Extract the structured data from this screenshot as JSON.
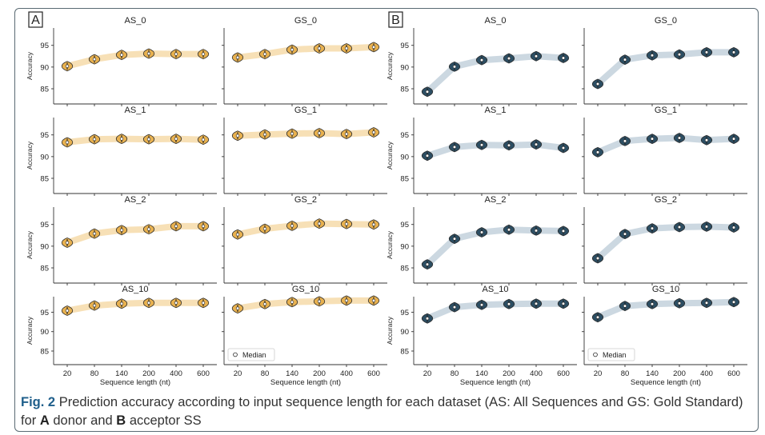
{
  "caption": {
    "label": "Fig. 2",
    "part1": "Prediction accuracy according to input sequence length for each dataset (AS: All Sequences and GS: Gold Standard) for",
    "a_letter": "A",
    "part2": "donor and",
    "b_letter": "B",
    "part3": "acceptor SS"
  },
  "panels": [
    {
      "letter": "A",
      "fill": "#e8b14f",
      "band": "#f7deb2"
    },
    {
      "letter": "B",
      "fill": "#2c4e63",
      "band": "#c9d6df"
    }
  ],
  "legend_label": "Median",
  "chart_data": {
    "type": "violin",
    "xlabel": "Sequence length (nt)",
    "ylabel": "Accuracy",
    "categories": [
      "20",
      "80",
      "140",
      "200",
      "400",
      "600"
    ],
    "ylim": [
      81.5,
      99
    ],
    "yticks": [
      85,
      90,
      95
    ],
    "grid": false,
    "legend": "Median, inside bottom-left of GS_10 subplots",
    "panels": [
      {
        "panel": "A",
        "subplots": [
          {
            "title": "AS_0",
            "medians": [
              90.2,
              91.8,
              92.8,
              93.1,
              93.0,
              93.0
            ]
          },
          {
            "title": "GS_0",
            "medians": [
              92.2,
              93.0,
              94.0,
              94.3,
              94.3,
              94.6
            ]
          },
          {
            "title": "AS_1",
            "medians": [
              93.3,
              94.0,
              94.1,
              94.0,
              94.1,
              93.9
            ]
          },
          {
            "title": "GS_1",
            "medians": [
              94.8,
              95.1,
              95.3,
              95.4,
              95.2,
              95.6
            ]
          },
          {
            "title": "AS_2",
            "medians": [
              90.8,
              92.9,
              93.7,
              93.9,
              94.6,
              94.6
            ]
          },
          {
            "title": "GS_2",
            "medians": [
              92.7,
              94.0,
              94.7,
              95.2,
              95.1,
              95.0
            ]
          },
          {
            "title": "AS_10",
            "medians": [
              95.4,
              96.7,
              97.2,
              97.4,
              97.4,
              97.4
            ]
          },
          {
            "title": "GS_10",
            "medians": [
              96.0,
              97.1,
              97.6,
              97.8,
              98.0,
              98.0
            ]
          }
        ]
      },
      {
        "panel": "B",
        "subplots": [
          {
            "title": "AS_0",
            "medians": [
              84.3,
              90.1,
              91.6,
              92.0,
              92.5,
              92.1
            ]
          },
          {
            "title": "GS_0",
            "medians": [
              86.1,
              91.7,
              92.7,
              92.9,
              93.4,
              93.4
            ]
          },
          {
            "title": "AS_1",
            "medians": [
              90.2,
              92.2,
              92.7,
              92.6,
              92.8,
              92.0
            ]
          },
          {
            "title": "GS_1",
            "medians": [
              91.0,
              93.6,
              94.1,
              94.3,
              93.8,
              94.1
            ]
          },
          {
            "title": "AS_2",
            "medians": [
              85.8,
              91.7,
              93.2,
              93.8,
              93.6,
              93.5
            ]
          },
          {
            "title": "GS_2",
            "medians": [
              87.2,
              92.8,
              94.1,
              94.4,
              94.5,
              94.3
            ]
          },
          {
            "title": "AS_10",
            "medians": [
              93.4,
              96.3,
              96.9,
              97.1,
              97.2,
              97.2
            ]
          },
          {
            "title": "GS_10",
            "medians": [
              93.7,
              96.6,
              97.1,
              97.3,
              97.4,
              97.6
            ]
          }
        ]
      }
    ]
  }
}
